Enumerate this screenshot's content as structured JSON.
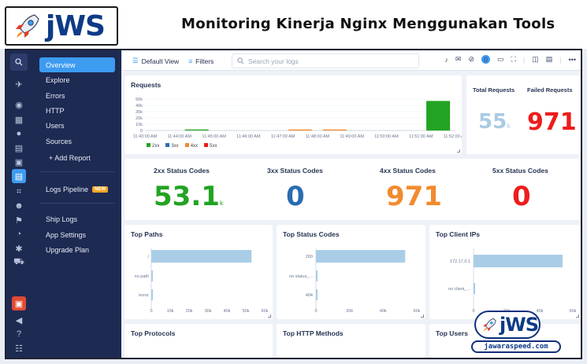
{
  "banner": {
    "logo_text": "jWS",
    "title": "Monitoring Kinerja Nginx Menggunakan Tools"
  },
  "nav": {
    "items": [
      "Overview",
      "Explore",
      "Errors",
      "HTTP",
      "Users",
      "Sources"
    ],
    "add_report": "+ Add Report",
    "logs_pipeline": "Logs Pipeline",
    "new_badge": "NEW",
    "bottom_items": [
      "Ship Logs",
      "App Settings",
      "Upgrade Plan"
    ]
  },
  "toolbar": {
    "default_view": "Default View",
    "filters": "Filters",
    "search_placeholder": "Search your logs",
    "notification_count": "0",
    "more": "•••"
  },
  "requests": {
    "title": "Requests",
    "total_label": "Total Requests",
    "failed_label": "Failed Requests",
    "total_value": "55",
    "total_unit": "k",
    "failed_value": "971",
    "legend": [
      "2xx",
      "3xx",
      "4xx",
      "5xx"
    ]
  },
  "status_codes": {
    "c2xx_label": "2xx Status Codes",
    "c2xx_value": "53.1",
    "c2xx_unit": "k",
    "c3xx_label": "3xx Status Codes",
    "c3xx_value": "0",
    "c4xx_label": "4xx Status Codes",
    "c4xx_value": "971",
    "c5xx_label": "5xx Status Codes",
    "c5xx_value": "0"
  },
  "panels": {
    "top_paths": "Top Paths",
    "top_status_codes": "Top Status Codes",
    "top_client_ips": "Top Client IPs",
    "top_protocols": "Top Protocols",
    "top_http_methods": "Top HTTP Methods",
    "top_users": "Top Users"
  },
  "watermark": {
    "logo_text": "jWS",
    "url": "jawaraspeed.com"
  },
  "colors": {
    "c2xx": "#22a322",
    "c3xx": "#2a6cb0",
    "c4xx": "#f28a2e",
    "c5xx": "#ee1c1c",
    "accent": "#3d9bf0",
    "bar": "#a9cde7"
  },
  "chart_data": [
    {
      "type": "bar",
      "title": "Requests",
      "categories": [
        "11:43:00 AM",
        "11:44:00 AM",
        "11:45:00 AM",
        "11:46:00 AM",
        "11:47:00 AM",
        "11:48:00 AM",
        "11:49:00 AM",
        "11:50:00 AM",
        "11:51:00 AM",
        "11:52:00 AM"
      ],
      "y_ticks": [
        "50k",
        "40k",
        "30k",
        "20k",
        "10k",
        "0"
      ],
      "ylim": [
        0,
        50000
      ],
      "series": [
        {
          "name": "2xx",
          "values": [
            0,
            200,
            0,
            0,
            0,
            0,
            0,
            0,
            47000,
            0
          ]
        },
        {
          "name": "3xx",
          "values": [
            0,
            0,
            0,
            0,
            0,
            0,
            0,
            0,
            0,
            0
          ]
        },
        {
          "name": "4xx",
          "values": [
            0,
            0,
            0,
            0,
            400,
            300,
            0,
            0,
            0,
            0
          ]
        },
        {
          "name": "5xx",
          "values": [
            0,
            0,
            0,
            0,
            0,
            0,
            0,
            0,
            0,
            0
          ]
        }
      ],
      "legend": "bottom-left"
    },
    {
      "type": "bar",
      "title": "Top Paths",
      "orientation": "horizontal",
      "categories": [
        "/",
        "no path",
        "/error"
      ],
      "values": [
        53000,
        600,
        400
      ],
      "x_ticks": [
        "0",
        "10k",
        "20k",
        "30k",
        "40k",
        "50k",
        "60k"
      ],
      "xlim": [
        0,
        60000
      ]
    },
    {
      "type": "bar",
      "title": "Top Status Codes",
      "orientation": "horizontal",
      "categories": [
        "200",
        "no status_...",
        "404"
      ],
      "values": [
        53100,
        600,
        500
      ],
      "x_ticks": [
        "0",
        "20k",
        "40k",
        "60k"
      ],
      "xlim": [
        0,
        60000
      ]
    },
    {
      "type": "bar",
      "title": "Top Client IPs",
      "orientation": "horizontal",
      "categories": [
        "172.17.0.1",
        "no client_..."
      ],
      "values": [
        53800,
        700
      ],
      "x_ticks": [
        "0",
        "20k",
        "40k",
        "60k"
      ],
      "xlim": [
        0,
        60000
      ]
    }
  ]
}
